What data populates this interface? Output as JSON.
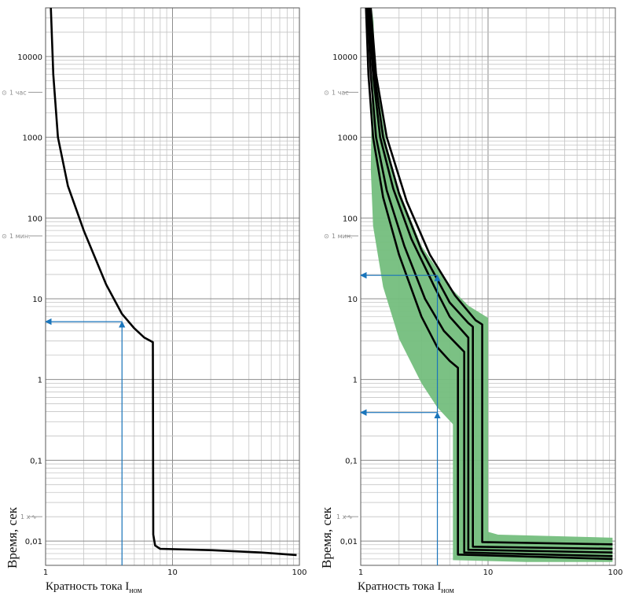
{
  "chart_data": [
    {
      "type": "line",
      "ylabel": "Время, сек",
      "xlabel": "Кратность тока I",
      "xlabel_sub": "ном",
      "xscale": "log",
      "yscale": "log",
      "xlim": [
        1,
        100
      ],
      "ylim": [
        0.005,
        40000
      ],
      "grid": true,
      "x_ticks": [
        "1",
        "10",
        "100"
      ],
      "y_ticks": [
        "10000",
        "1000",
        "100",
        "10",
        "1",
        "0,1",
        "0,01"
      ],
      "y_markers": [
        {
          "label": "1 час",
          "y": 3600
        },
        {
          "label": "1 мин.",
          "y": 60
        },
        {
          "label": "1 x",
          "y": 0.02
        }
      ],
      "series": [
        {
          "points": [
            [
              1.1,
              40000
            ],
            [
              1.15,
              6000
            ],
            [
              1.25,
              1000
            ],
            [
              1.5,
              250
            ],
            [
              2,
              70
            ],
            [
              3,
              15
            ],
            [
              4,
              6.5
            ],
            [
              5,
              4.3
            ],
            [
              6,
              3.3
            ],
            [
              7,
              2.9
            ],
            [
              7.05,
              0.012
            ],
            [
              7.3,
              0.0088
            ],
            [
              8,
              0.008
            ],
            [
              20,
              0.0077
            ],
            [
              50,
              0.0072
            ],
            [
              95,
              0.0067
            ]
          ]
        }
      ],
      "annotations": [
        {
          "type": "arrow",
          "from": [
            4,
            0.005
          ],
          "to": [
            4,
            5.2
          ],
          "color": "#1a75bb"
        },
        {
          "type": "arrow",
          "from": [
            4,
            5.2
          ],
          "to": [
            1,
            5.2
          ],
          "color": "#1a75bb"
        }
      ]
    },
    {
      "type": "line",
      "ylabel": "Время, сек",
      "xlabel": "Кратность тока I",
      "xlabel_sub": "ном",
      "xscale": "log",
      "yscale": "log",
      "xlim": [
        1,
        100
      ],
      "ylim": [
        0.005,
        40000
      ],
      "grid": true,
      "x_ticks": [
        "1",
        "10",
        "100"
      ],
      "y_ticks": [
        "10000",
        "1000",
        "100",
        "10",
        "1",
        "0,1",
        "0,01"
      ],
      "y_markers": [
        {
          "label": "1 час",
          "y": 3600
        },
        {
          "label": "1 мин.",
          "y": 60
        },
        {
          "label": "1 x",
          "y": 0.02
        }
      ],
      "band_color": "#74be7d",
      "band": {
        "upper": [
          [
            1.25,
            40000
          ],
          [
            1.3,
            6000
          ],
          [
            1.6,
            800
          ],
          [
            2,
            220
          ],
          [
            3,
            45
          ],
          [
            5,
            14
          ],
          [
            7,
            8.2
          ],
          [
            10,
            5.8
          ],
          [
            10,
            0.013
          ],
          [
            12,
            0.012
          ],
          [
            95,
            0.011
          ]
        ],
        "lower": [
          [
            95,
            0.0055
          ],
          [
            20,
            0.0055
          ],
          [
            5.3,
            0.0058
          ],
          [
            5.3,
            0.28
          ],
          [
            4,
            0.45
          ],
          [
            3,
            0.9
          ],
          [
            2,
            3.2
          ],
          [
            1.5,
            14
          ],
          [
            1.25,
            80
          ],
          [
            1.2,
            400
          ]
        ]
      },
      "series": [
        {
          "points": [
            [
              1.1,
              40000
            ],
            [
              1.15,
              6000
            ],
            [
              1.25,
              1000
            ],
            [
              1.5,
              180
            ],
            [
              2,
              35
            ],
            [
              3,
              6
            ],
            [
              4,
              2.5
            ],
            [
              5,
              1.7
            ],
            [
              5.8,
              1.4
            ],
            [
              5.8,
              0.0068
            ],
            [
              95,
              0.006
            ]
          ]
        },
        {
          "points": [
            [
              1.13,
              40000
            ],
            [
              1.2,
              6000
            ],
            [
              1.32,
              1000
            ],
            [
              1.6,
              220
            ],
            [
              2.2,
              45
            ],
            [
              3.2,
              10
            ],
            [
              4.5,
              4
            ],
            [
              6,
              2.5
            ],
            [
              6.5,
              2.2
            ],
            [
              6.5,
              0.0072
            ],
            [
              95,
              0.0065
            ]
          ]
        },
        {
          "points": [
            [
              1.15,
              40000
            ],
            [
              1.25,
              6000
            ],
            [
              1.42,
              1000
            ],
            [
              1.8,
              230
            ],
            [
              2.5,
              55
            ],
            [
              3.8,
              14
            ],
            [
              5,
              6
            ],
            [
              7,
              3.3
            ],
            [
              7,
              0.0078
            ],
            [
              95,
              0.0072
            ]
          ]
        },
        {
          "points": [
            [
              1.17,
              40000
            ],
            [
              1.28,
              6000
            ],
            [
              1.5,
              1000
            ],
            [
              2,
              200
            ],
            [
              3,
              40
            ],
            [
              5,
              9
            ],
            [
              7,
              5
            ],
            [
              7.6,
              4.5
            ],
            [
              7.6,
              0.0085
            ],
            [
              95,
              0.008
            ]
          ]
        },
        {
          "points": [
            [
              1.2,
              40000
            ],
            [
              1.32,
              6000
            ],
            [
              1.6,
              1000
            ],
            [
              2.3,
              160
            ],
            [
              3.5,
              35
            ],
            [
              5.5,
              11
            ],
            [
              8,
              5.4
            ],
            [
              9,
              4.8
            ],
            [
              9,
              0.0097
            ],
            [
              95,
              0.0091
            ]
          ]
        }
      ],
      "annotations": [
        {
          "type": "arrow",
          "from": [
            4,
            0.005
          ],
          "to": [
            4,
            0.39
          ],
          "color": "#1a75bb"
        },
        {
          "type": "arrow",
          "from": [
            4,
            0.39
          ],
          "to": [
            1,
            0.39
          ],
          "color": "#1a75bb"
        },
        {
          "type": "arrow",
          "from": [
            4,
            0.39
          ],
          "to": [
            4,
            19.5
          ],
          "color": "#1a75bb"
        },
        {
          "type": "arrow",
          "from": [
            4,
            19.5
          ],
          "to": [
            1,
            19.5
          ],
          "color": "#1a75bb"
        }
      ]
    }
  ]
}
